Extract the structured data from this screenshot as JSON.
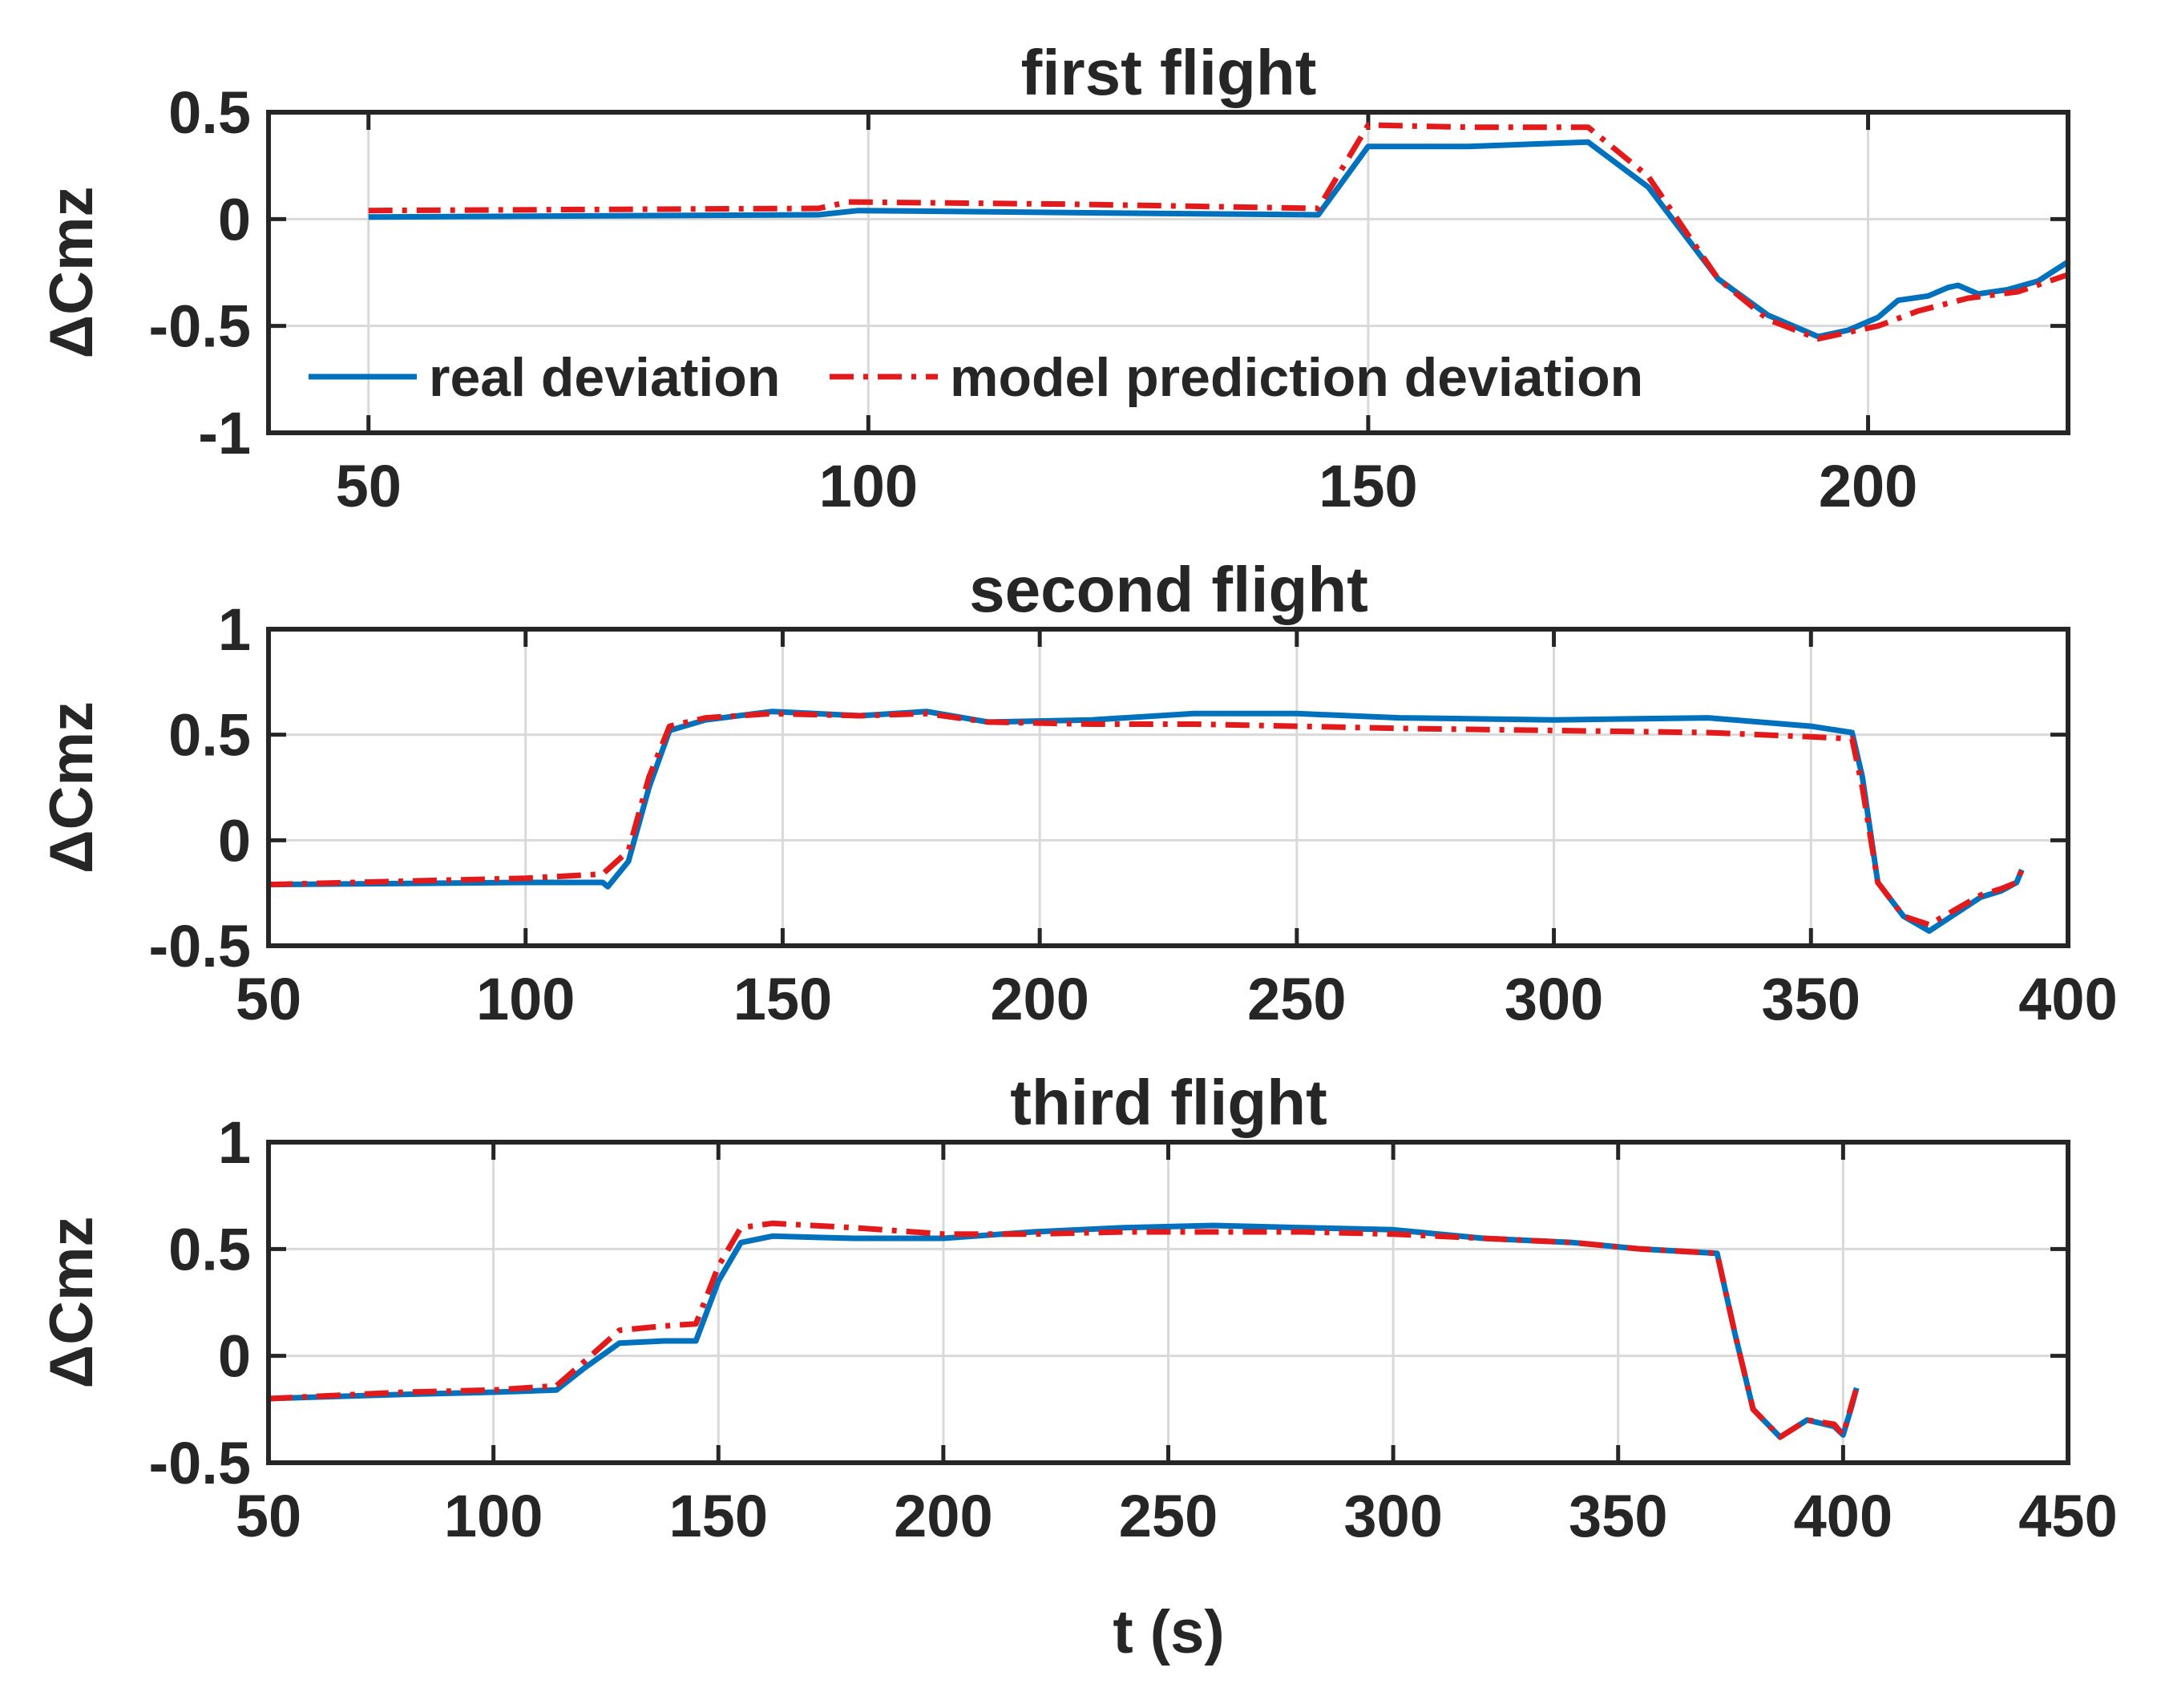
{
  "chart_data": [
    {
      "type": "line",
      "title": "first flight",
      "xlabel": "",
      "ylabel": "ΔCmz",
      "xlim": [
        40,
        220
      ],
      "ylim": [
        -1,
        0.5
      ],
      "xticks": [
        50,
        100,
        150,
        200
      ],
      "yticks": [
        0.5,
        0,
        -0.5,
        -1
      ],
      "ytick_labels": [
        "0.5",
        "0",
        "-0.5",
        "-1"
      ],
      "grid": true,
      "legend": {
        "position": "bottom-left",
        "entries": [
          "real deviation",
          "model prediction deviation"
        ]
      },
      "series": [
        {
          "name": "real deviation",
          "color": "#0072BD",
          "style": "solid",
          "points": [
            [
              50,
              0.01
            ],
            [
              95,
              0.02
            ],
            [
              99,
              0.04
            ],
            [
              120,
              0.03
            ],
            [
              145,
              0.02
            ],
            [
              150,
              0.34
            ],
            [
              160,
              0.34
            ],
            [
              172,
              0.36
            ],
            [
              178,
              0.15
            ],
            [
              185,
              -0.28
            ],
            [
              190,
              -0.45
            ],
            [
              195,
              -0.55
            ],
            [
              198,
              -0.52
            ],
            [
              201,
              -0.46
            ],
            [
              203,
              -0.38
            ],
            [
              206,
              -0.36
            ],
            [
              208,
              -0.32
            ],
            [
              209,
              -0.31
            ],
            [
              211,
              -0.35
            ],
            [
              214,
              -0.33
            ],
            [
              217,
              -0.29
            ],
            [
              220,
              -0.2
            ]
          ]
        },
        {
          "name": "model prediction deviation",
          "color": "#E31A1C",
          "style": "dashdot",
          "points": [
            [
              50,
              0.04
            ],
            [
              95,
              0.05
            ],
            [
              98,
              0.08
            ],
            [
              120,
              0.07
            ],
            [
              145,
              0.05
            ],
            [
              150,
              0.44
            ],
            [
              160,
              0.43
            ],
            [
              172,
              0.43
            ],
            [
              178,
              0.2
            ],
            [
              185,
              -0.28
            ],
            [
              190,
              -0.47
            ],
            [
              195,
              -0.56
            ],
            [
              198,
              -0.53
            ],
            [
              201,
              -0.5
            ],
            [
              205,
              -0.43
            ],
            [
              210,
              -0.37
            ],
            [
              215,
              -0.34
            ],
            [
              220,
              -0.26
            ]
          ]
        }
      ]
    },
    {
      "type": "line",
      "title": "second flight",
      "xlabel": "",
      "ylabel": "ΔCmz",
      "xlim": [
        50,
        400
      ],
      "ylim": [
        -0.5,
        1
      ],
      "xticks": [
        50,
        100,
        150,
        200,
        250,
        300,
        350,
        400
      ],
      "yticks": [
        1,
        0.5,
        0,
        -0.5
      ],
      "ytick_labels": [
        "1",
        "0.5",
        "0",
        "-0.5"
      ],
      "grid": true,
      "series": [
        {
          "name": "real deviation",
          "color": "#0072BD",
          "style": "solid",
          "points": [
            [
              50,
              -0.21
            ],
            [
              100,
              -0.2
            ],
            [
              115,
              -0.2
            ],
            [
              116,
              -0.22
            ],
            [
              120,
              -0.1
            ],
            [
              124,
              0.25
            ],
            [
              128,
              0.52
            ],
            [
              135,
              0.57
            ],
            [
              148,
              0.61
            ],
            [
              165,
              0.59
            ],
            [
              178,
              0.61
            ],
            [
              190,
              0.56
            ],
            [
              210,
              0.57
            ],
            [
              230,
              0.6
            ],
            [
              250,
              0.6
            ],
            [
              270,
              0.58
            ],
            [
              300,
              0.57
            ],
            [
              330,
              0.58
            ],
            [
              350,
              0.54
            ],
            [
              358,
              0.51
            ],
            [
              360,
              0.3
            ],
            [
              363,
              -0.2
            ],
            [
              368,
              -0.36
            ],
            [
              373,
              -0.43
            ],
            [
              378,
              -0.35
            ],
            [
              383,
              -0.27
            ],
            [
              387,
              -0.24
            ],
            [
              390,
              -0.2
            ],
            [
              391,
              -0.14
            ]
          ]
        },
        {
          "name": "model prediction deviation",
          "color": "#E31A1C",
          "style": "dashdot",
          "points": [
            [
              50,
              -0.21
            ],
            [
              100,
              -0.18
            ],
            [
              115,
              -0.16
            ],
            [
              120,
              -0.05
            ],
            [
              124,
              0.3
            ],
            [
              128,
              0.54
            ],
            [
              135,
              0.58
            ],
            [
              148,
              0.6
            ],
            [
              165,
              0.59
            ],
            [
              178,
              0.6
            ],
            [
              190,
              0.56
            ],
            [
              210,
              0.55
            ],
            [
              230,
              0.55
            ],
            [
              250,
              0.54
            ],
            [
              270,
              0.53
            ],
            [
              300,
              0.52
            ],
            [
              330,
              0.51
            ],
            [
              350,
              0.49
            ],
            [
              358,
              0.48
            ],
            [
              360,
              0.25
            ],
            [
              363,
              -0.2
            ],
            [
              368,
              -0.36
            ],
            [
              373,
              -0.4
            ],
            [
              378,
              -0.33
            ],
            [
              383,
              -0.26
            ],
            [
              387,
              -0.23
            ],
            [
              390,
              -0.2
            ],
            [
              391,
              -0.14
            ]
          ]
        }
      ]
    },
    {
      "type": "line",
      "title": "third flight",
      "xlabel": "t (s)",
      "ylabel": "ΔCmz",
      "xlim": [
        50,
        450
      ],
      "ylim": [
        -0.5,
        1
      ],
      "xticks": [
        50,
        100,
        150,
        200,
        250,
        300,
        350,
        400,
        450
      ],
      "yticks": [
        1,
        0.5,
        0,
        -0.5
      ],
      "ytick_labels": [
        "1",
        "0.5",
        "0",
        "-0.5"
      ],
      "grid": true,
      "series": [
        {
          "name": "real deviation",
          "color": "#0072BD",
          "style": "solid",
          "points": [
            [
              50,
              -0.2
            ],
            [
              80,
              -0.18
            ],
            [
              100,
              -0.17
            ],
            [
              114,
              -0.16
            ],
            [
              120,
              -0.06
            ],
            [
              128,
              0.06
            ],
            [
              138,
              0.07
            ],
            [
              145,
              0.07
            ],
            [
              150,
              0.35
            ],
            [
              155,
              0.53
            ],
            [
              162,
              0.56
            ],
            [
              180,
              0.55
            ],
            [
              200,
              0.55
            ],
            [
              220,
              0.58
            ],
            [
              240,
              0.6
            ],
            [
              260,
              0.61
            ],
            [
              280,
              0.6
            ],
            [
              300,
              0.59
            ],
            [
              320,
              0.55
            ],
            [
              340,
              0.53
            ],
            [
              355,
              0.5
            ],
            [
              372,
              0.48
            ],
            [
              376,
              0.1
            ],
            [
              380,
              -0.25
            ],
            [
              386,
              -0.38
            ],
            [
              392,
              -0.3
            ],
            [
              398,
              -0.33
            ],
            [
              400,
              -0.37
            ],
            [
              402,
              -0.23
            ],
            [
              403,
              -0.15
            ]
          ]
        },
        {
          "name": "model prediction deviation",
          "color": "#E31A1C",
          "style": "dashdot",
          "points": [
            [
              50,
              -0.2
            ],
            [
              80,
              -0.17
            ],
            [
              100,
              -0.16
            ],
            [
              114,
              -0.14
            ],
            [
              120,
              -0.03
            ],
            [
              128,
              0.12
            ],
            [
              138,
              0.14
            ],
            [
              145,
              0.15
            ],
            [
              150,
              0.42
            ],
            [
              155,
              0.6
            ],
            [
              162,
              0.62
            ],
            [
              180,
              0.6
            ],
            [
              200,
              0.57
            ],
            [
              220,
              0.57
            ],
            [
              240,
              0.58
            ],
            [
              260,
              0.58
            ],
            [
              280,
              0.58
            ],
            [
              300,
              0.57
            ],
            [
              320,
              0.55
            ],
            [
              340,
              0.53
            ],
            [
              355,
              0.5
            ],
            [
              372,
              0.48
            ],
            [
              376,
              0.1
            ],
            [
              380,
              -0.25
            ],
            [
              386,
              -0.38
            ],
            [
              392,
              -0.3
            ],
            [
              398,
              -0.32
            ],
            [
              400,
              -0.37
            ],
            [
              402,
              -0.22
            ],
            [
              403,
              -0.15
            ]
          ]
        }
      ]
    }
  ]
}
